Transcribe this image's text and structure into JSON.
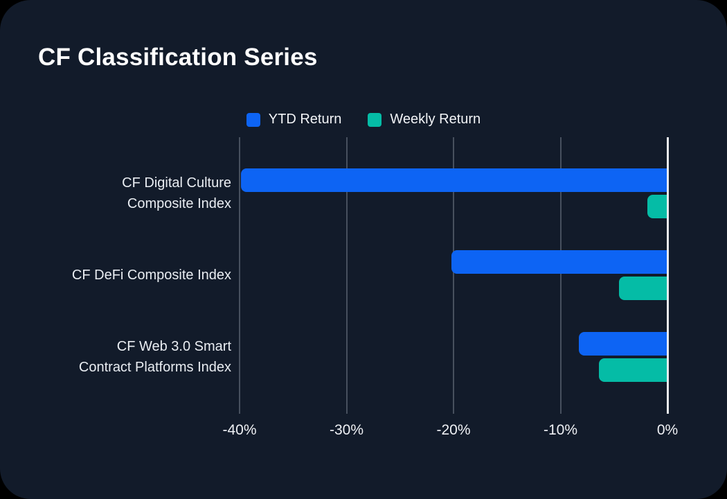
{
  "page": {
    "title": "CF Classification Series"
  },
  "legend": [
    {
      "label": "YTD Return",
      "color": "#0d64f4"
    },
    {
      "label": "Weekly Return",
      "color": "#05bca6"
    }
  ],
  "colors": {
    "background": "#121b2a",
    "gridline": "#47505e",
    "zero_axis": "#e9ebee",
    "text": "#eef0f4",
    "ytd_blue": "#0d64f4",
    "weekly_teal": "#05bca6"
  },
  "chart_data": {
    "type": "bar",
    "orientation": "horizontal",
    "title": "CF Classification Series",
    "categories": [
      "CF Digital Culture Composite Index",
      "CF DeFi Composite Index",
      "CF Web 3.0 Smart Contract Platforms Index"
    ],
    "category_lines": [
      [
        "CF Digital Culture",
        "Composite Index"
      ],
      [
        "CF DeFi Composite Index"
      ],
      [
        "CF Web 3.0 Smart",
        "Contract Platforms Index"
      ]
    ],
    "series": [
      {
        "name": "YTD Return",
        "color": "#0d64f4",
        "values": [
          -39.9,
          -20.2,
          -8.3
        ]
      },
      {
        "name": "Weekly Return",
        "color": "#05bca6",
        "values": [
          -1.9,
          -4.5,
          -6.4
        ]
      }
    ],
    "xlabel": "",
    "ylabel": "",
    "xlim": [
      -40,
      0
    ],
    "x_tick_values": [
      -40,
      -30,
      -20,
      -10,
      0
    ],
    "x_ticks": [
      "-40%",
      "-30%",
      "-20%",
      "-10%",
      "0%"
    ],
    "grid": "vertical",
    "legend_position": "top",
    "value_unit": "percent"
  }
}
